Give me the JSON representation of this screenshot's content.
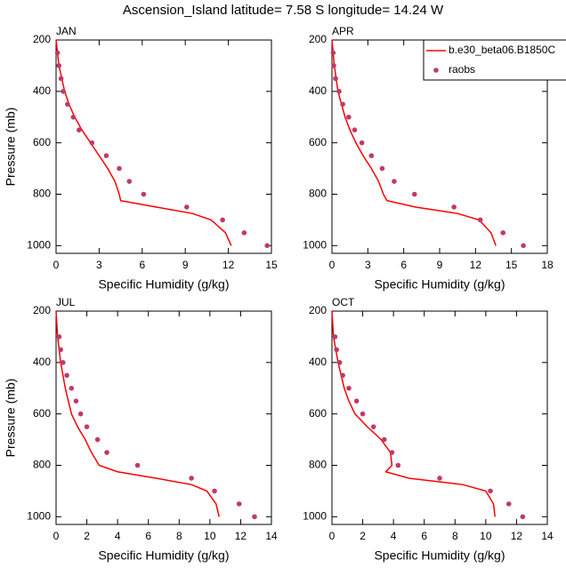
{
  "title": "Ascension_Island  latitude= 7.58 S longitude= 14.24 W",
  "chart_data": [
    {
      "type": "line",
      "title": "JAN",
      "xlabel": "Specific Humidity (g/kg)",
      "ylabel": "Pressure (mb)",
      "xlim": [
        0,
        15
      ],
      "xticks": [
        0,
        3,
        6,
        9,
        12,
        15
      ],
      "ylim": [
        1030,
        200
      ],
      "yticks": [
        200,
        400,
        600,
        800,
        1000
      ],
      "series": [
        {
          "type": "line",
          "color": "#ff0000",
          "x": [
            0,
            0.1,
            0.2,
            0.4,
            0.6,
            0.9,
            1.3,
            1.8,
            2.4,
            3.0,
            3.6,
            4.1,
            4.4,
            4.5,
            7.0,
            9.5,
            10.8,
            11.8,
            12.2
          ],
          "y": [
            200,
            250,
            300,
            350,
            400,
            450,
            500,
            550,
            600,
            650,
            700,
            750,
            800,
            825,
            850,
            875,
            900,
            950,
            1000
          ]
        },
        {
          "type": "scatter",
          "color": "#c0396b",
          "x": [
            0.1,
            0.2,
            0.35,
            0.5,
            0.8,
            1.2,
            1.6,
            2.5,
            3.5,
            4.4,
            5.1,
            6.1,
            9.1,
            11.6,
            13.1,
            14.7
          ],
          "y": [
            250,
            300,
            350,
            400,
            450,
            500,
            550,
            600,
            650,
            700,
            750,
            800,
            850,
            900,
            950,
            1000
          ]
        }
      ]
    },
    {
      "type": "line",
      "title": "APR",
      "xlabel": "Specific Humidity (g/kg)",
      "xlim": [
        0,
        18
      ],
      "xticks": [
        0,
        3,
        6,
        9,
        12,
        15,
        18
      ],
      "ylim": [
        1030,
        200
      ],
      "yticks": [
        200,
        400,
        600,
        800,
        1000
      ],
      "legend": "upper right",
      "series": [
        {
          "name": "b.e30_beta06.B1850C",
          "type": "line",
          "color": "#ff0000",
          "x": [
            0,
            0.1,
            0.2,
            0.35,
            0.5,
            0.8,
            1.1,
            1.5,
            2.0,
            2.6,
            3.3,
            3.9,
            4.3,
            4.6,
            7.0,
            10.5,
            12.3,
            13.3,
            13.7
          ],
          "y": [
            200,
            250,
            300,
            350,
            400,
            450,
            500,
            550,
            600,
            650,
            700,
            750,
            800,
            825,
            850,
            875,
            900,
            950,
            1000
          ]
        },
        {
          "name": "raobs",
          "type": "scatter",
          "color": "#c0396b",
          "x": [
            0.1,
            0.15,
            0.3,
            0.6,
            0.9,
            1.4,
            1.9,
            2.5,
            3.3,
            4.2,
            5.2,
            6.9,
            10.2,
            12.4,
            14.3,
            16.0
          ],
          "y": [
            250,
            300,
            350,
            400,
            450,
            500,
            550,
            600,
            650,
            700,
            750,
            800,
            850,
            900,
            950,
            1000
          ]
        }
      ]
    },
    {
      "type": "line",
      "title": "JUL",
      "xlabel": "Specific Humidity (g/kg)",
      "ylabel": "Pressure (mb)",
      "xlim": [
        0,
        14
      ],
      "xticks": [
        0,
        2,
        4,
        6,
        8,
        10,
        12,
        14
      ],
      "ylim": [
        1030,
        200
      ],
      "yticks": [
        200,
        400,
        600,
        800,
        1000
      ],
      "series": [
        {
          "type": "line",
          "color": "#ff0000",
          "x": [
            0,
            0.05,
            0.1,
            0.2,
            0.3,
            0.45,
            0.6,
            0.8,
            1.0,
            1.4,
            1.9,
            2.3,
            2.8,
            4.0,
            6.5,
            8.8,
            9.8,
            10.4,
            10.6
          ],
          "y": [
            200,
            250,
            300,
            350,
            400,
            450,
            500,
            550,
            600,
            650,
            700,
            750,
            800,
            825,
            850,
            875,
            900,
            950,
            1000
          ]
        },
        {
          "type": "scatter",
          "color": "#c0396b",
          "x": [
            0.2,
            0.3,
            0.45,
            0.7,
            1.0,
            1.3,
            1.6,
            2.0,
            2.7,
            3.3,
            5.3,
            8.8,
            10.3,
            11.9,
            12.9
          ],
          "y": [
            300,
            350,
            400,
            450,
            500,
            550,
            600,
            650,
            700,
            750,
            800,
            850,
            900,
            950,
            1000
          ]
        }
      ]
    },
    {
      "type": "line",
      "title": "OCT",
      "xlabel": "Specific Humidity (g/kg)",
      "xlim": [
        0,
        14
      ],
      "xticks": [
        0,
        2,
        4,
        6,
        8,
        10,
        12,
        14
      ],
      "ylim": [
        1030,
        200
      ],
      "yticks": [
        200,
        400,
        600,
        800,
        1000
      ],
      "series": [
        {
          "type": "line",
          "color": "#ff0000",
          "x": [
            0,
            0.05,
            0.1,
            0.25,
            0.4,
            0.6,
            0.8,
            1.1,
            1.5,
            2.3,
            3.2,
            3.8,
            3.9,
            3.5,
            5.0,
            8.5,
            10.0,
            10.5,
            10.6
          ],
          "y": [
            200,
            250,
            300,
            350,
            400,
            450,
            500,
            550,
            600,
            650,
            700,
            750,
            800,
            825,
            850,
            875,
            900,
            950,
            1000
          ]
        },
        {
          "type": "scatter",
          "color": "#c0396b",
          "x": [
            0.2,
            0.3,
            0.5,
            0.7,
            1.1,
            1.6,
            2.0,
            2.7,
            3.4,
            3.9,
            4.3,
            7.0,
            10.3,
            11.5,
            12.4
          ],
          "y": [
            300,
            350,
            400,
            450,
            500,
            550,
            600,
            650,
            700,
            750,
            800,
            850,
            900,
            950,
            1000
          ]
        }
      ]
    }
  ]
}
